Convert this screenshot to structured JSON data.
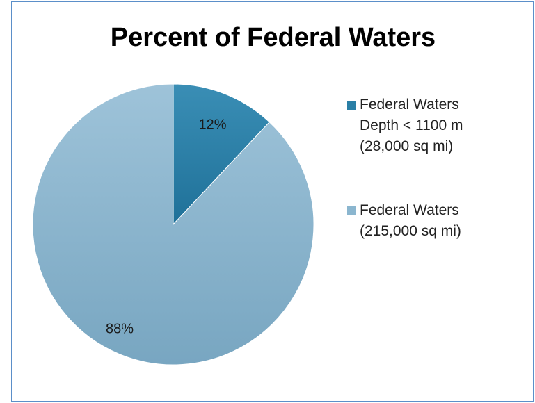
{
  "chart_data": {
    "type": "pie",
    "title": "Percent of Federal Waters",
    "slices": [
      {
        "label_lines": [
          "Federal Waters",
          "Depth < 1100 m",
          "(28,000 sq mi)"
        ],
        "value": 12,
        "display": "12%",
        "color": "#2a7fa6"
      },
      {
        "label_lines": [
          "Federal Waters",
          "(215,000 sq mi)"
        ],
        "value": 88,
        "display": "88%",
        "color": "#8bb6cf"
      }
    ],
    "legend_position": "right"
  }
}
